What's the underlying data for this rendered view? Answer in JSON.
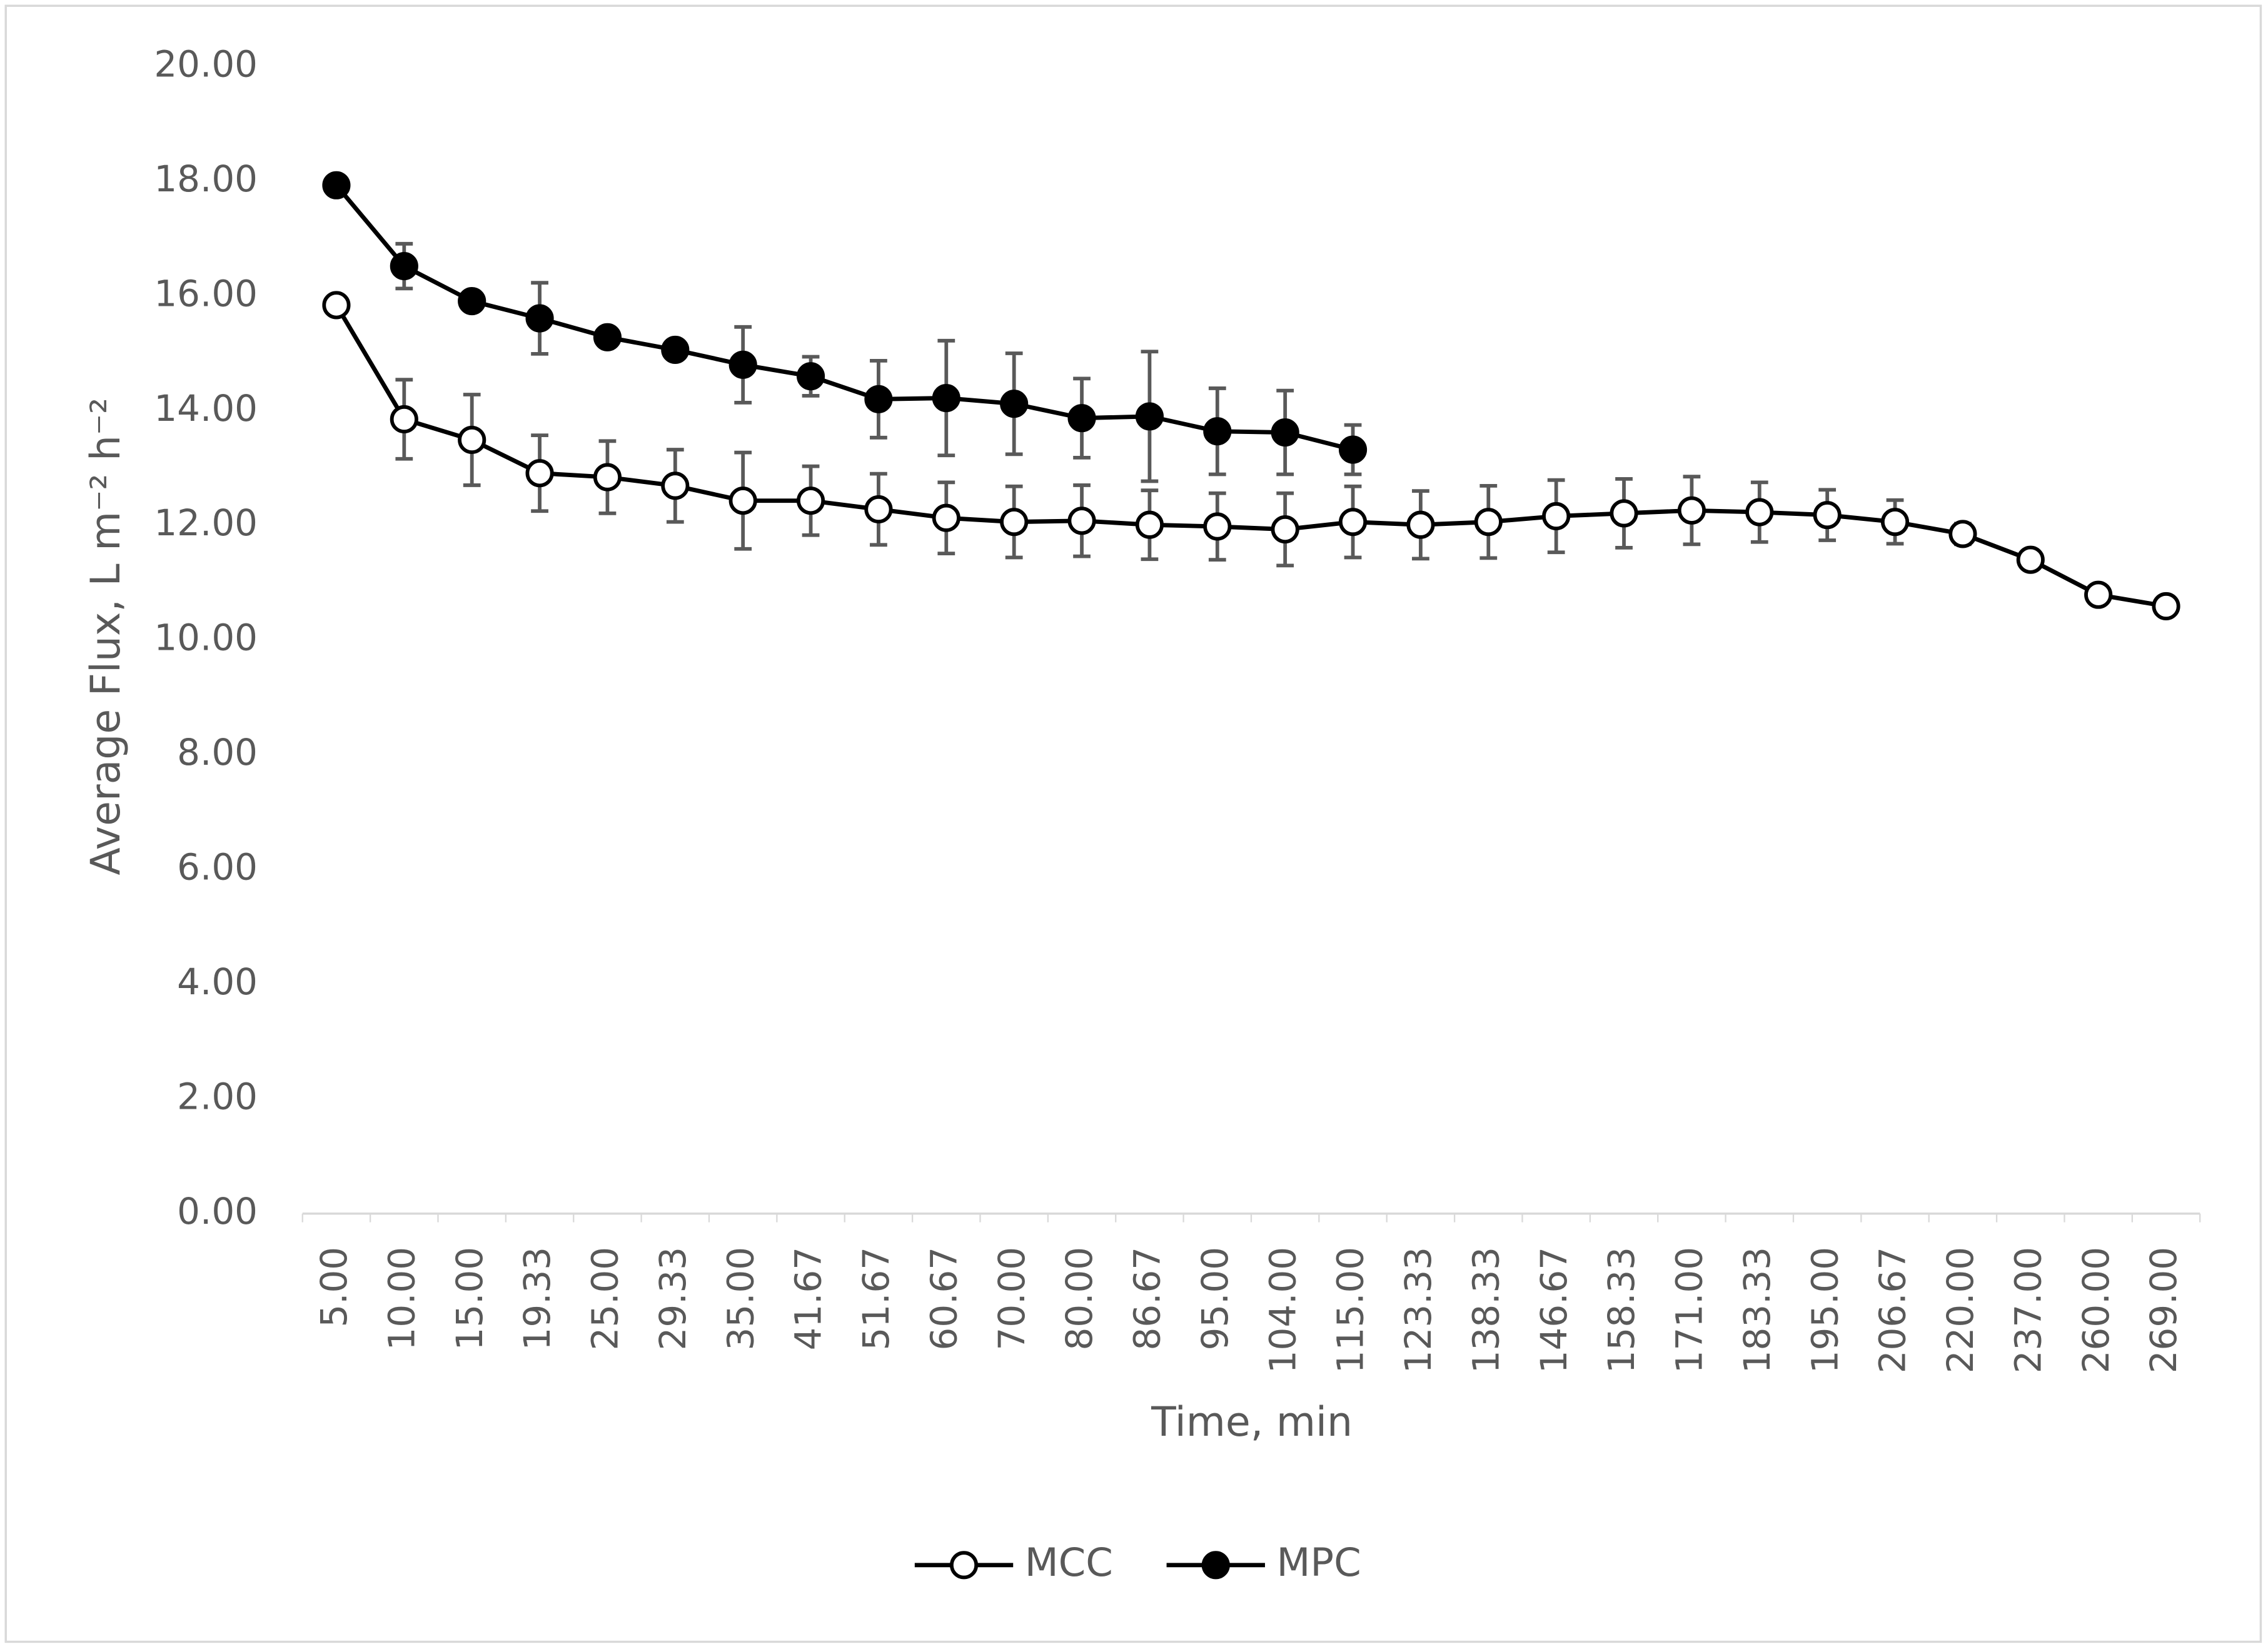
{
  "chart_data": {
    "type": "line",
    "x_label": "Time, min",
    "y_label": "Average Flux, L m⁻² h⁻²",
    "categories": [
      "5.00",
      "10.00",
      "15.00",
      "19.33",
      "25.00",
      "29.33",
      "35.00",
      "41.67",
      "51.67",
      "60.67",
      "70.00",
      "80.00",
      "86.67",
      "95.00",
      "104.00",
      "115.00",
      "123.33",
      "138.33",
      "146.67",
      "158.33",
      "171.00",
      "183.33",
      "195.00",
      "206.67",
      "220.00",
      "237.00",
      "260.00",
      "269.00"
    ],
    "series": [
      {
        "name": "MCC",
        "color": "#000000",
        "marker": "open",
        "values": [
          15.84,
          13.85,
          13.49,
          12.91,
          12.84,
          12.69,
          12.43,
          12.43,
          12.28,
          12.13,
          12.06,
          12.08,
          12.01,
          11.98,
          11.93,
          12.06,
          12.01,
          12.06,
          12.16,
          12.21,
          12.26,
          12.23,
          12.18,
          12.06,
          11.85,
          11.4,
          10.79,
          10.59
        ],
        "errors": [
          0.1,
          0.69,
          0.79,
          0.66,
          0.63,
          0.63,
          0.84,
          0.6,
          0.62,
          0.62,
          0.62,
          0.62,
          0.6,
          0.58,
          0.63,
          0.62,
          0.59,
          0.63,
          0.63,
          0.6,
          0.59,
          0.52,
          0.44,
          0.38,
          0.18,
          0.05,
          0.05,
          0.05
        ]
      },
      {
        "name": "MPC",
        "color": "#000000",
        "marker": "filled",
        "values": [
          17.93,
          16.52,
          15.91,
          15.61,
          15.28,
          15.06,
          14.8,
          14.6,
          14.2,
          14.22,
          14.12,
          13.87,
          13.9,
          13.64,
          13.62,
          13.32,
          null,
          null,
          null,
          null,
          null,
          null,
          null,
          null,
          null,
          null,
          null,
          null
        ],
        "errors": [
          0.1,
          0.39,
          0.15,
          0.62,
          0.15,
          0.15,
          0.66,
          0.34,
          0.67,
          1.0,
          0.88,
          0.69,
          1.13,
          0.75,
          0.73,
          0.43,
          null,
          null,
          null,
          null,
          null,
          null,
          null,
          null,
          null,
          null,
          null,
          null
        ]
      }
    ],
    "ylim": [
      0,
      20
    ],
    "yticks": [
      {
        "value": 0,
        "label": "0.00"
      },
      {
        "value": 2,
        "label": "2.00"
      },
      {
        "value": 4,
        "label": "4.00"
      },
      {
        "value": 6,
        "label": "6.00"
      },
      {
        "value": 8,
        "label": "8.00"
      },
      {
        "value": 10,
        "label": "10.00"
      },
      {
        "value": 12,
        "label": "12.00"
      },
      {
        "value": 14,
        "label": "14.00"
      },
      {
        "value": 16,
        "label": "16.00"
      },
      {
        "value": 18,
        "label": "18.00"
      },
      {
        "value": 20,
        "label": "20.00"
      }
    ],
    "grid": false,
    "legend": "bottom"
  }
}
